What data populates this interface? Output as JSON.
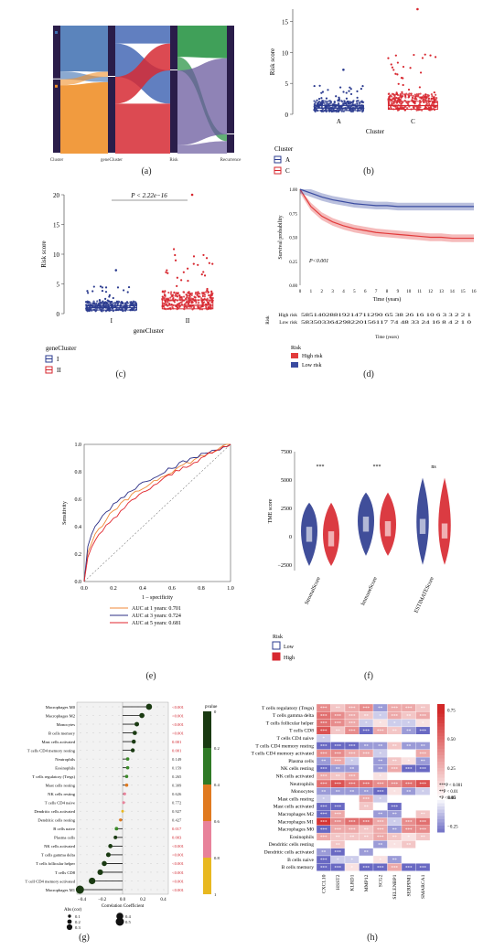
{
  "panel_labels": {
    "a": "(a)",
    "b": "(b)",
    "c": "(c)",
    "d": "(d)",
    "e": "(e)",
    "f": "(f)",
    "g": "(g)",
    "h": "(h)"
  },
  "sankey": {
    "axes": [
      "Cluster",
      "geneCluster",
      "Risk",
      "Recurrence"
    ],
    "cluster_nodes": [
      {
        "label": "A",
        "share": 0.42,
        "color": "#3e6fb0"
      },
      {
        "label": "C",
        "share": 0.58,
        "color": "#f0902a"
      }
    ],
    "genecluster_nodes": [
      {
        "label": "I",
        "share": 0.4,
        "color": "#3a5fb0"
      },
      {
        "label": "II",
        "share": 0.6,
        "color": "#d62a34"
      }
    ],
    "risk_nodes": [
      {
        "label": "High",
        "share": 0.35,
        "color": "#1f8f3c"
      },
      {
        "label": "Low",
        "share": 0.65,
        "color": "#4a3a8e"
      }
    ],
    "recurrence_nodes": [
      {
        "label": "NO",
        "share": 0.85,
        "color": "#b0235c"
      },
      {
        "label": "YES",
        "share": 0.15,
        "color": "#c9b12a"
      }
    ]
  },
  "panel_b": {
    "chart_data": {
      "type": "box",
      "ylabel": "Risk score",
      "xlabel": "Cluster",
      "categories": [
        "A",
        "C"
      ],
      "ylim": [
        0,
        17
      ],
      "yticks": [
        0,
        5,
        10,
        15
      ],
      "median": [
        1.0,
        1.4
      ],
      "q1": [
        0.6,
        0.8
      ],
      "q3": [
        1.4,
        2.1
      ],
      "outlier_max": [
        7.2,
        17.0
      ]
    },
    "legend_title": "Cluster",
    "legend_items": [
      {
        "label": "A",
        "color": "#2b3b8f"
      },
      {
        "label": "C",
        "color": "#d7262e"
      }
    ]
  },
  "panel_c": {
    "chart_data": {
      "type": "box",
      "ylabel": "Risk score",
      "xlabel": "geneCluster",
      "categories": [
        "I",
        "II"
      ],
      "ylim": [
        0,
        20
      ],
      "yticks": [
        0,
        5,
        10,
        15,
        20
      ],
      "median": [
        1.0,
        1.4
      ],
      "q1": [
        0.6,
        0.8
      ],
      "q3": [
        1.3,
        2.3
      ],
      "outlier_max": [
        7.3,
        20.0
      ]
    },
    "pvalue": "P < 2.22e−16",
    "legend_title": "geneCluster",
    "legend_items": [
      {
        "label": "I",
        "color": "#2b3b8f"
      },
      {
        "label": "II",
        "color": "#d7262e"
      }
    ]
  },
  "panel_d": {
    "chart_data": {
      "type": "line",
      "ylabel": "Survival probability",
      "xlabel": "Time (years)",
      "x": [
        0,
        1,
        2,
        3,
        4,
        5,
        6,
        7,
        8,
        9,
        10,
        11,
        12,
        13,
        14,
        15,
        16
      ],
      "series": [
        {
          "name": "High risk",
          "values": [
            1.0,
            0.82,
            0.72,
            0.66,
            0.62,
            0.59,
            0.57,
            0.55,
            0.54,
            0.53,
            0.52,
            0.51,
            0.5,
            0.5,
            0.49,
            0.49,
            0.49
          ],
          "color": "#e23b3b"
        },
        {
          "name": "Low risk",
          "values": [
            1.0,
            0.96,
            0.92,
            0.89,
            0.87,
            0.85,
            0.84,
            0.83,
            0.83,
            0.82,
            0.82,
            0.82,
            0.82,
            0.82,
            0.82,
            0.82,
            0.82
          ],
          "color": "#3a4ba0"
        }
      ],
      "ylim": [
        0,
        1
      ],
      "yticks": [
        "0.00",
        "0.25",
        "0.50",
        "0.75",
        "1.00"
      ]
    },
    "pvalue": "P<0.001",
    "risk_table_title": "Risk",
    "risk_table_rows": [
      {
        "label": "High risk",
        "values": "58514028819214711290 65 38 26 16 10 6 3 3 2 2 1"
      },
      {
        "label": "Low risk",
        "values": "583503364298220156117 74 48 33 24 16 8 4 2 1 0"
      }
    ],
    "legend_title": "Risk",
    "legend_items": [
      {
        "label": "High risk",
        "color": "#e23b3b"
      },
      {
        "label": "Low risk",
        "color": "#3a4ba0"
      }
    ]
  },
  "panel_e": {
    "chart_data": {
      "type": "line",
      "ylabel": "Sensitivity",
      "xlabel": "1 – specificity",
      "ticks": [
        "0.0",
        "0.2",
        "0.4",
        "0.6",
        "0.8",
        "1.0"
      ],
      "series": [
        {
          "name": "AUC at 1 years: 0.701",
          "color": "#f08a3a"
        },
        {
          "name": "AUC at 3 years: 0.724",
          "color": "#2c2f86"
        },
        {
          "name": "AUC at 5 years: 0.681",
          "color": "#e0262d"
        }
      ]
    },
    "legend_items": [
      {
        "label": "AUC at 1 years: 0.701",
        "color": "#f08a3a"
      },
      {
        "label": "AUC at 3 years: 0.724",
        "color": "#2c2f86"
      },
      {
        "label": "AUC at 5 years: 0.681",
        "color": "#e0262d"
      }
    ]
  },
  "panel_f": {
    "chart_data": {
      "type": "violin",
      "ylabel": "TME score",
      "categories": [
        "StromalScore",
        "ImmuneScore",
        "ESTIMATEScore"
      ],
      "yticks": [
        "−2500",
        "0",
        "2500",
        "5000",
        "7500"
      ],
      "signif": [
        "***",
        "***",
        "ns"
      ]
    },
    "legend_title": "Risk",
    "legend_items": [
      {
        "label": "Low",
        "color": "#2b3b8f"
      },
      {
        "label": "High",
        "color": "#d7262e"
      }
    ]
  },
  "panel_g": {
    "chart_data": {
      "type": "lollipop",
      "xlabel": "Correlation Coefficient",
      "xticks": [
        "−0.4",
        "−0.2",
        "0.0",
        "0.2",
        "0.4"
      ],
      "rows": [
        {
          "label": "Macrophages M0",
          "cor": 0.26,
          "p": "<0.001"
        },
        {
          "label": "Macrophages M2",
          "cor": 0.19,
          "p": "<0.001"
        },
        {
          "label": "Monocytes",
          "cor": 0.14,
          "p": "<0.001"
        },
        {
          "label": "B cells memory",
          "cor": 0.12,
          "p": "<0.001"
        },
        {
          "label": "Mast cells activated",
          "cor": 0.11,
          "p": "0.001"
        },
        {
          "label": "T cells CD4 memory resting",
          "cor": 0.1,
          "p": "0.001"
        },
        {
          "label": "Neutrophils",
          "cor": 0.05,
          "p": "0.149"
        },
        {
          "label": "Eosinophils",
          "cor": 0.05,
          "p": "0.159"
        },
        {
          "label": "T cells regulatory (Tregs)",
          "cor": 0.04,
          "p": "0.265"
        },
        {
          "label": "Mast cells resting",
          "cor": 0.04,
          "p": "0.309"
        },
        {
          "label": "NK cells resting",
          "cor": 0.02,
          "p": "0.626"
        },
        {
          "label": "T cells CD4 naive",
          "cor": 0.01,
          "p": "0.772"
        },
        {
          "label": "Dendritic cells activated",
          "cor": 0.0,
          "p": "0.927"
        },
        {
          "label": "Dendritic cells resting",
          "cor": -0.02,
          "p": "0.427"
        },
        {
          "label": "B cells naive",
          "cor": -0.06,
          "p": "0.017"
        },
        {
          "label": "Plasma cells",
          "cor": -0.07,
          "p": "0.003"
        },
        {
          "label": "NK cells activated",
          "cor": -0.12,
          "p": "<0.001"
        },
        {
          "label": "T cells gamma delta",
          "cor": -0.14,
          "p": "<0.001"
        },
        {
          "label": "T cells follicular helper",
          "cor": -0.18,
          "p": "<0.001"
        },
        {
          "label": "T cells CD8",
          "cor": -0.22,
          "p": "<0.001"
        },
        {
          "label": "T cell CD4 memory activated",
          "cor": -0.3,
          "p": "<0.001"
        },
        {
          "label": "Macrophages M1",
          "cor": -0.42,
          "p": "<0.001"
        }
      ]
    },
    "legend_title": "pvalue",
    "pvalue_ticks": [
      "0",
      "0.2",
      "0.4",
      "0.6",
      "0.8",
      "1"
    ],
    "size_legend_title": "Abs (cor)",
    "size_legend_items": [
      "0.1",
      "0.2",
      "0.3",
      "0.4",
      "0.5"
    ]
  },
  "panel_h": {
    "chart_data": {
      "type": "heatmap",
      "cols": [
        "CXCL10",
        "HSST2",
        "KLRD1",
        "MMP12",
        "SCG2",
        "SELENBP1",
        "SERPINI1",
        "SMARCA1"
      ],
      "rows": [
        "T cells regulatory (Tregs)",
        "T cells gamma delta",
        "T cells follicular helper",
        "T cells CD8",
        "T cells CD4 naive",
        "T cells CD4 memory resting",
        "T cells CD4 memory activated",
        "Plasma cells",
        "NK cells resting",
        "NK cells activated",
        "Neutrophils",
        "Monocytes",
        "Mast cells resting",
        "Mast cells activated",
        "Macrophages M2",
        "Macrophages M1",
        "Macrophages M0",
        "Eosinophils",
        "Dendritic cells resting",
        "Dendritic cells activated",
        "B cells naive",
        "B cells memory"
      ],
      "values": [
        [
          0.4,
          0.2,
          0.3,
          0.4,
          -0.2,
          0.3,
          0.3,
          0.2
        ],
        [
          0.5,
          0.4,
          0.3,
          0.2,
          -0.1,
          0.3,
          0.2,
          0.3
        ],
        [
          0.5,
          0.4,
          0.3,
          -0.1,
          0.1,
          -0.1,
          -0.1,
          0.1
        ],
        [
          0.6,
          0.2,
          0.4,
          -0.3,
          0.3,
          0.2,
          -0.2,
          -0.3
        ],
        [
          -0.1,
          0.0,
          0.0,
          0.0,
          0.0,
          0.0,
          0.0,
          0.0
        ],
        [
          -0.3,
          -0.3,
          -0.3,
          -0.2,
          -0.2,
          0.2,
          -0.2,
          -0.2
        ],
        [
          0.4,
          0.4,
          0.3,
          0.3,
          -0.1,
          0.0,
          0.0,
          0.3
        ],
        [
          -0.2,
          0.3,
          -0.1,
          0.0,
          -0.2,
          0.2,
          0.1,
          -0.2
        ],
        [
          -0.3,
          -0.2,
          -0.2,
          0.0,
          -0.2,
          0.3,
          -0.3,
          -0.3
        ],
        [
          0.3,
          0.2,
          0.3,
          0.0,
          0.1,
          0.0,
          0.0,
          0.0
        ],
        [
          0.5,
          0.6,
          0.5,
          0.5,
          0.4,
          0.4,
          0.5,
          0.6
        ],
        [
          -0.2,
          -0.2,
          -0.2,
          -0.2,
          -0.3,
          0.1,
          -0.2,
          -0.1
        ],
        [
          -0.1,
          0.0,
          0.0,
          0.3,
          -0.1,
          0.0,
          0.0,
          0.0
        ],
        [
          -0.3,
          -0.3,
          0.0,
          0.2,
          0.0,
          -0.3,
          0.0,
          0.0
        ],
        [
          -0.3,
          0.3,
          0.0,
          0.0,
          -0.2,
          -0.2,
          0.0,
          0.2
        ],
        [
          0.7,
          0.4,
          0.5,
          0.5,
          0.3,
          -0.1,
          0.4,
          0.5
        ],
        [
          -0.3,
          0.3,
          0.3,
          0.2,
          0.3,
          -0.2,
          0.4,
          0.4
        ],
        [
          0.3,
          0.2,
          0.2,
          0.2,
          0.3,
          0.2,
          0.1,
          0.2
        ],
        [
          0.0,
          0.2,
          0.0,
          0.0,
          -0.2,
          0.1,
          0.2,
          0.0
        ],
        [
          -0.2,
          -0.3,
          0.0,
          -0.2,
          0.0,
          0.0,
          0.0,
          0.0
        ],
        [
          -0.3,
          -0.1,
          -0.1,
          0.0,
          0.1,
          -0.2,
          0.0,
          0.0
        ],
        [
          -0.3,
          -0.3,
          0.1,
          -0.3,
          -0.3,
          0.3,
          -0.3,
          -0.3
        ]
      ],
      "scale_ticks": [
        "0.75",
        "0.50",
        "0.25",
        "0.00",
        "−0.25"
      ]
    },
    "star_legend": [
      "***P < 0.001",
      "**P < 0.01",
      "*P < 0.05"
    ]
  }
}
